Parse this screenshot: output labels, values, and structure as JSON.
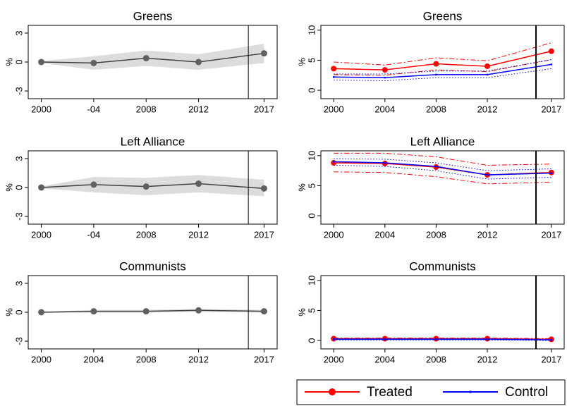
{
  "chart_data": [
    {
      "type": "line",
      "title": "Greens",
      "ylabel": "%",
      "x": [
        2000,
        2004,
        2008,
        2012,
        2017
      ],
      "xticks": [
        2000,
        {
          "value": 2004,
          "label": "-04"
        },
        2008,
        2012,
        2017
      ],
      "xlim": [
        1999,
        2018
      ],
      "ylim": [
        -3.8,
        3.8
      ],
      "yticks": [
        -3,
        0,
        3
      ],
      "vline": 2015.8,
      "color": "#404040",
      "band_color": "#dcdcdc",
      "values": [
        0,
        -0.1,
        0.4,
        0.0,
        0.9
      ],
      "band_lower": [
        -0.1,
        -0.8,
        -0.4,
        -0.8,
        -0.1
      ],
      "band_upper": [
        0.1,
        0.6,
        1.2,
        0.8,
        1.9
      ]
    },
    {
      "type": "line",
      "title": "Greens",
      "ylabel": "%",
      "x": [
        2000,
        2004,
        2008,
        2012,
        2017
      ],
      "xticks": [
        2000,
        2004,
        2008,
        2012,
        2017
      ],
      "xlim": [
        1999,
        2018
      ],
      "ylim": [
        -1.4,
        10.8
      ],
      "yticks": [
        0,
        5,
        10
      ],
      "vline": 2015.8,
      "series": [
        {
          "color": "#ff0000",
          "marker": "circle",
          "values": [
            3.6,
            3.4,
            4.4,
            4.0,
            6.5
          ],
          "ci_lower": [
            2.6,
            2.5,
            3.4,
            3.1,
            5.1
          ],
          "ci_upper": [
            4.7,
            4.2,
            5.4,
            4.9,
            7.9
          ]
        },
        {
          "color": "#0000ff",
          "marker": "square",
          "values": [
            2.2,
            2.1,
            2.6,
            2.6,
            4.3
          ],
          "ci_lower": [
            1.7,
            1.6,
            2.1,
            2.1,
            3.6
          ],
          "ci_upper": [
            2.7,
            2.7,
            3.2,
            3.2,
            5.1
          ]
        }
      ]
    },
    {
      "type": "line",
      "title": "Left Alliance",
      "ylabel": "%",
      "x": [
        2000,
        2004,
        2008,
        2012,
        2017
      ],
      "xticks": [
        2000,
        {
          "value": 2004,
          "label": "-04"
        },
        2008,
        2012,
        2017
      ],
      "xlim": [
        1999,
        2018
      ],
      "ylim": [
        -3.8,
        3.8
      ],
      "yticks": [
        -3,
        0,
        3
      ],
      "vline": 2015.8,
      "color": "#404040",
      "band_color": "#dcdcdc",
      "values": [
        0,
        0.3,
        0.1,
        0.4,
        -0.1
      ],
      "band_lower": [
        -0.1,
        -0.5,
        -0.8,
        -0.5,
        -0.9
      ],
      "band_upper": [
        0.1,
        1.1,
        1.0,
        1.3,
        0.8
      ]
    },
    {
      "type": "line",
      "title": "Left Alliance",
      "ylabel": "%",
      "x": [
        2000,
        2004,
        2008,
        2012,
        2017
      ],
      "xticks": [
        2000,
        2004,
        2008,
        2012,
        2017
      ],
      "xlim": [
        1999,
        2018
      ],
      "ylim": [
        -1.4,
        10.8
      ],
      "yticks": [
        0,
        5,
        10
      ],
      "vline": 2015.8,
      "series": [
        {
          "color": "#ff0000",
          "marker": "circle",
          "values": [
            8.8,
            8.7,
            8.1,
            6.8,
            7.2
          ],
          "ci_lower": [
            7.3,
            7.2,
            6.5,
            5.3,
            5.6
          ],
          "ci_upper": [
            10.4,
            10.4,
            9.8,
            8.4,
            8.6
          ]
        },
        {
          "color": "#0000ff",
          "marker": "square",
          "values": [
            9.0,
            8.8,
            8.2,
            6.8,
            7.1
          ],
          "ci_lower": [
            8.4,
            8.2,
            7.5,
            6.1,
            6.4
          ],
          "ci_upper": [
            9.5,
            9.4,
            8.8,
            7.5,
            7.8
          ]
        }
      ]
    },
    {
      "type": "line",
      "title": "Communists",
      "ylabel": "%",
      "x": [
        2000,
        2004,
        2008,
        2012,
        2017
      ],
      "xticks": [
        2000,
        2004,
        2008,
        2012,
        2017
      ],
      "xlim": [
        1999,
        2018
      ],
      "ylim": [
        -3.8,
        3.8
      ],
      "yticks": [
        -3,
        0,
        3
      ],
      "vline": 2015.8,
      "color": "#404040",
      "band_color": "#dcdcdc",
      "values": [
        0,
        0.1,
        0.1,
        0.2,
        0.1
      ],
      "band_lower": [
        -0.05,
        -0.05,
        -0.05,
        0.05,
        -0.05
      ],
      "band_upper": [
        0.05,
        0.25,
        0.25,
        0.35,
        0.25
      ]
    },
    {
      "type": "line",
      "title": "Communists",
      "ylabel": "%",
      "x": [
        2000,
        2004,
        2008,
        2012,
        2017
      ],
      "xticks": [
        2000,
        2004,
        2008,
        2012,
        2017
      ],
      "xlim": [
        1999,
        2018
      ],
      "ylim": [
        -1.4,
        10.8
      ],
      "yticks": [
        0,
        5,
        10
      ],
      "vline": 2015.8,
      "series": [
        {
          "color": "#ff0000",
          "marker": "circle",
          "values": [
            0.3,
            0.3,
            0.3,
            0.3,
            0.2
          ],
          "ci_lower": [
            0.2,
            0.2,
            0.2,
            0.2,
            0.1
          ],
          "ci_upper": [
            0.4,
            0.4,
            0.4,
            0.4,
            0.3
          ]
        },
        {
          "color": "#0000ff",
          "marker": "square",
          "values": [
            0.2,
            0.2,
            0.2,
            0.2,
            0.1
          ],
          "ci_lower": [
            0.1,
            0.1,
            0.1,
            0.1,
            0.0
          ],
          "ci_upper": [
            0.3,
            0.3,
            0.3,
            0.3,
            0.2
          ]
        }
      ]
    }
  ],
  "legend": {
    "position": "bottom-right",
    "items": [
      {
        "name": "Treated",
        "color": "#ff0000",
        "marker": "circle"
      },
      {
        "name": "Control",
        "color": "#0000ff",
        "marker": "square"
      }
    ]
  }
}
